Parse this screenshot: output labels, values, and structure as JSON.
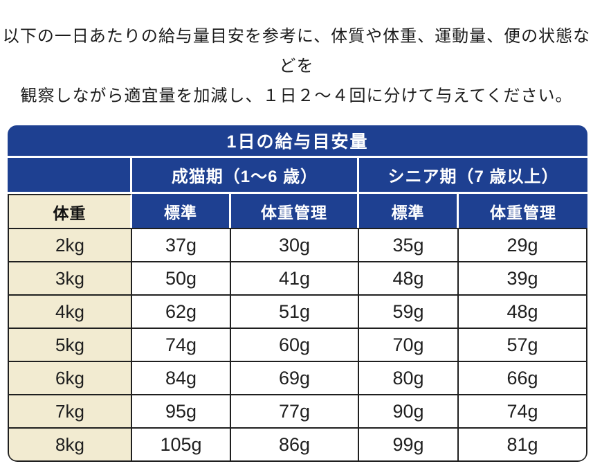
{
  "intro": {
    "line1": "以下の一日あたりの給与量目安を参考に、体質や体重、運動量、便の状態などを",
    "line2": "観察しながら適宜量を加減し、１日２～４回に分けて与えてください。"
  },
  "table": {
    "title": "1日の給与目安量",
    "col_groups": [
      {
        "label": "成猫期（1～6 歳）"
      },
      {
        "label": "シニア期（7 歳以上）"
      }
    ],
    "sub_headers": {
      "weight": "体重",
      "standard": "標準",
      "weight_control": "体重管理"
    },
    "rows": [
      {
        "weight": "2kg",
        "values": [
          "37g",
          "30g",
          "35g",
          "29g"
        ]
      },
      {
        "weight": "3kg",
        "values": [
          "50g",
          "41g",
          "48g",
          "39g"
        ]
      },
      {
        "weight": "4kg",
        "values": [
          "62g",
          "51g",
          "59g",
          "48g"
        ]
      },
      {
        "weight": "5kg",
        "values": [
          "74g",
          "60g",
          "70g",
          "57g"
        ]
      },
      {
        "weight": "6kg",
        "values": [
          "84g",
          "69g",
          "80g",
          "66g"
        ]
      },
      {
        "weight": "7kg",
        "values": [
          "95g",
          "77g",
          "90g",
          "74g"
        ]
      },
      {
        "weight": "8kg",
        "values": [
          "105g",
          "86g",
          "99g",
          "81g"
        ]
      }
    ]
  },
  "colors": {
    "header_blue": "#1e4091",
    "cream": "#f2ebd1",
    "grid_line": "#1f1f1f"
  }
}
